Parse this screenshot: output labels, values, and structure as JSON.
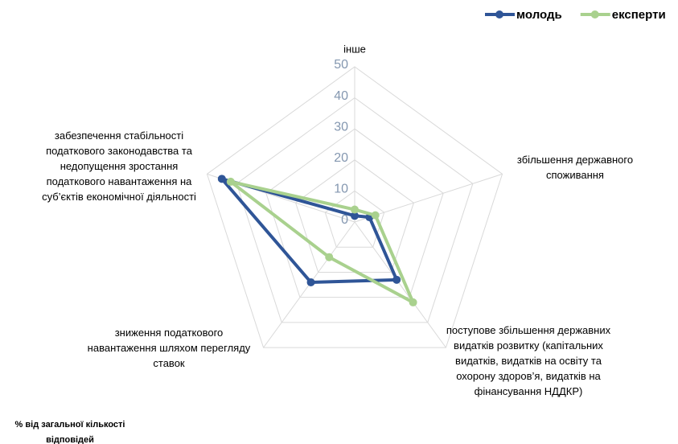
{
  "chart_data": {
    "type": "radar",
    "categories": [
      "інше",
      "збільшення державного\nспоживання",
      "поступове збільшення державних\nвидатків розвитку (капітальних\nвидатків, видатків на освіту та\nохорону здоров’я, видатків на\nфінансування НДДКР)",
      "зниження податкового\nнавантаження шляхом перегляду\nставок",
      "забезпечення стабільності\nподаткового законодавства та\nнедопущення зростання\nподаткового навантаження на\nсуб’єктів економічної діяльності"
    ],
    "series": [
      {
        "name": "молодь",
        "color": "#2f5597",
        "values": [
          2,
          5,
          23,
          24,
          45
        ]
      },
      {
        "name": "експерти",
        "color": "#a9d18e",
        "values": [
          4,
          7,
          32,
          14,
          42
        ]
      }
    ],
    "ylim": [
      0,
      50
    ],
    "yticks": [
      0,
      10,
      20,
      30,
      40,
      50
    ],
    "grid": true,
    "legend": "top-right",
    "note": "% від загальної кількості\nвідповідей"
  }
}
